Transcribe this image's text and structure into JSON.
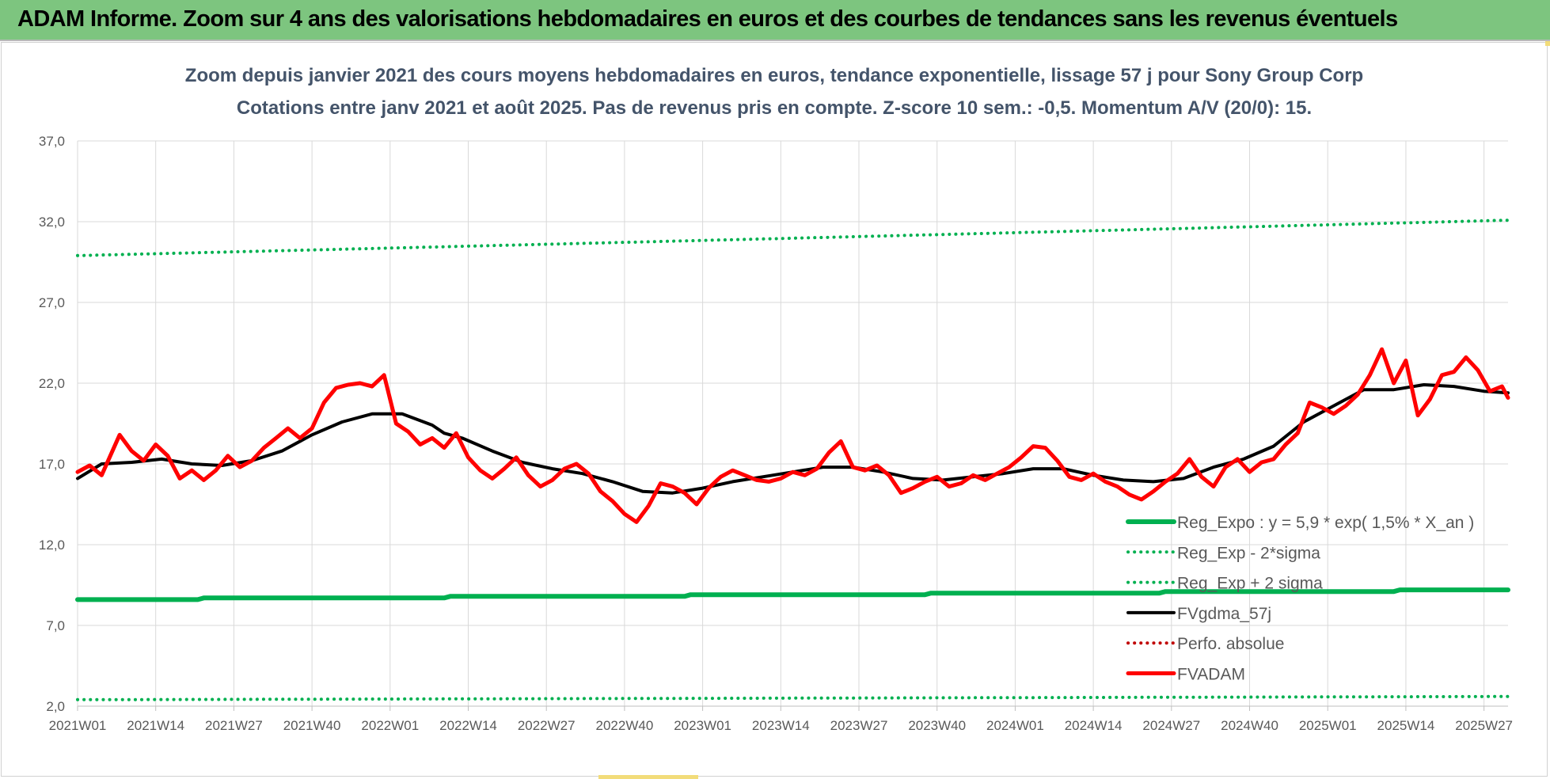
{
  "banner": {
    "title": "ADAM Informe. Zoom sur 4 ans des valorisations hebdomadaires en euros et des courbes de tendances sans les revenus éventuels"
  },
  "colors": {
    "banner_bg": "#7dc57f",
    "reg_green": "#00b050",
    "fvgdma": "#000000",
    "fvadam": "#ff0000",
    "perfo": "#c00000",
    "title_text": "#44546a",
    "grid": "#d9d9d9"
  },
  "chart_data": {
    "type": "line",
    "title": "Zoom depuis janvier 2021 des cours moyens hebdomadaires en euros, tendance exponentielle, lissage 57 j pour Sony Group Corp",
    "subtitle": "Cotations entre janv 2021 et août 2025.  Pas de revenus pris en compte. Z-score 10 sem.: -0,5. Momentum A/V (20/0): 15.",
    "xlabel": "",
    "ylabel": "",
    "ylim": [
      2.0,
      37.0
    ],
    "y_ticks": [
      "2,0",
      "7,0",
      "12,0",
      "17,0",
      "22,0",
      "27,0",
      "32,0",
      "37,0"
    ],
    "x_tick_labels": [
      "2021W01",
      "2021W14",
      "2021W27",
      "2021W40",
      "2022W01",
      "2022W14",
      "2022W27",
      "2022W40",
      "2023W01",
      "2023W14",
      "2023W27",
      "2023W40",
      "2024W01",
      "2024W14",
      "2024W27",
      "2024W40",
      "2025W01",
      "2025W14",
      "2025W27"
    ],
    "x_range": [
      1,
      239
    ],
    "grid": true,
    "legend_position": "bottom-right",
    "series": [
      {
        "name": "Reg_Expo : y = 5,9 * exp( 1,5% *  X_an )",
        "style": "solid-thick",
        "color": "#00b050",
        "x": [
          1,
          240
        ],
        "y": [
          8.6,
          9.2
        ]
      },
      {
        "name": "Reg_Exp - 2*sigma",
        "style": "dotted",
        "color": "#00b050",
        "x": [
          1,
          240
        ],
        "y": [
          2.4,
          2.6
        ]
      },
      {
        "name": "Reg_Exp + 2 sigma",
        "style": "dotted",
        "color": "#00b050",
        "x": [
          1,
          240
        ],
        "y": [
          29.9,
          32.1
        ]
      },
      {
        "name": "FVgdma_57j",
        "style": "solid",
        "color": "#000000",
        "x": [
          1,
          5,
          10,
          15,
          20,
          25,
          30,
          35,
          40,
          45,
          50,
          55,
          60,
          62,
          65,
          70,
          75,
          80,
          85,
          90,
          95,
          100,
          105,
          110,
          115,
          120,
          125,
          130,
          135,
          140,
          145,
          150,
          155,
          160,
          165,
          170,
          175,
          180,
          185,
          190,
          195,
          200,
          205,
          210,
          215,
          220,
          225,
          230,
          235,
          239
        ],
        "y": [
          16.1,
          17.0,
          17.1,
          17.3,
          17.0,
          16.9,
          17.2,
          17.8,
          18.8,
          19.6,
          20.1,
          20.1,
          19.4,
          18.9,
          18.6,
          17.8,
          17.1,
          16.7,
          16.4,
          15.9,
          15.3,
          15.2,
          15.5,
          15.9,
          16.2,
          16.5,
          16.8,
          16.8,
          16.5,
          16.1,
          16.0,
          16.2,
          16.4,
          16.7,
          16.7,
          16.3,
          16.0,
          15.9,
          16.1,
          16.8,
          17.3,
          18.1,
          19.6,
          20.6,
          21.6,
          21.6,
          21.9,
          21.8,
          21.5,
          21.4
        ]
      },
      {
        "name": "Perfo. absolue",
        "style": "dotted",
        "color": "#c00000",
        "x": [],
        "y": []
      },
      {
        "name": "FVADAM",
        "style": "solid-thick",
        "color": "#ff0000",
        "x": [
          1,
          3,
          5,
          8,
          10,
          12,
          14,
          16,
          18,
          20,
          22,
          24,
          26,
          28,
          30,
          32,
          34,
          36,
          38,
          40,
          42,
          44,
          46,
          48,
          50,
          52,
          54,
          56,
          58,
          60,
          62,
          64,
          66,
          68,
          70,
          72,
          74,
          76,
          78,
          80,
          82,
          84,
          86,
          88,
          90,
          92,
          94,
          96,
          98,
          100,
          102,
          104,
          106,
          108,
          110,
          112,
          114,
          116,
          118,
          120,
          122,
          124,
          126,
          128,
          130,
          132,
          134,
          136,
          138,
          140,
          142,
          144,
          146,
          148,
          150,
          152,
          154,
          156,
          158,
          160,
          162,
          164,
          166,
          168,
          170,
          172,
          174,
          176,
          178,
          180,
          182,
          184,
          186,
          188,
          190,
          192,
          194,
          196,
          198,
          200,
          202,
          204,
          206,
          208,
          210,
          212,
          214,
          216,
          218,
          220,
          222,
          224,
          226,
          228,
          230,
          232,
          234,
          236,
          238,
          239
        ],
        "y": [
          16.5,
          16.9,
          16.3,
          18.8,
          17.8,
          17.2,
          18.2,
          17.5,
          16.1,
          16.6,
          16.0,
          16.6,
          17.5,
          16.8,
          17.2,
          18.0,
          18.6,
          19.2,
          18.6,
          19.2,
          20.8,
          21.7,
          21.9,
          22.0,
          21.8,
          22.5,
          19.5,
          19.0,
          18.2,
          18.6,
          18.0,
          18.9,
          17.4,
          16.6,
          16.1,
          16.7,
          17.4,
          16.3,
          15.6,
          16.0,
          16.7,
          17.0,
          16.4,
          15.3,
          14.7,
          13.9,
          13.4,
          14.4,
          15.8,
          15.6,
          15.2,
          14.5,
          15.5,
          16.2,
          16.6,
          16.3,
          16.0,
          15.9,
          16.1,
          16.5,
          16.3,
          16.7,
          17.7,
          18.4,
          16.8,
          16.6,
          16.9,
          16.3,
          15.2,
          15.5,
          15.9,
          16.2,
          15.6,
          15.8,
          16.3,
          16.0,
          16.4,
          16.8,
          17.4,
          18.1,
          18.0,
          17.2,
          16.2,
          16.0,
          16.4,
          15.9,
          15.6,
          15.1,
          14.8,
          15.3,
          15.9,
          16.4,
          17.3,
          16.2,
          15.6,
          16.8,
          17.3,
          16.5,
          17.1,
          17.3,
          18.2,
          18.9,
          20.8,
          20.5,
          20.1,
          20.6,
          21.3,
          22.5,
          24.1,
          22.0,
          23.4,
          20.0,
          21.0,
          22.5,
          22.7,
          23.6,
          22.8,
          21.5,
          21.8,
          21.1
        ]
      }
    ]
  }
}
